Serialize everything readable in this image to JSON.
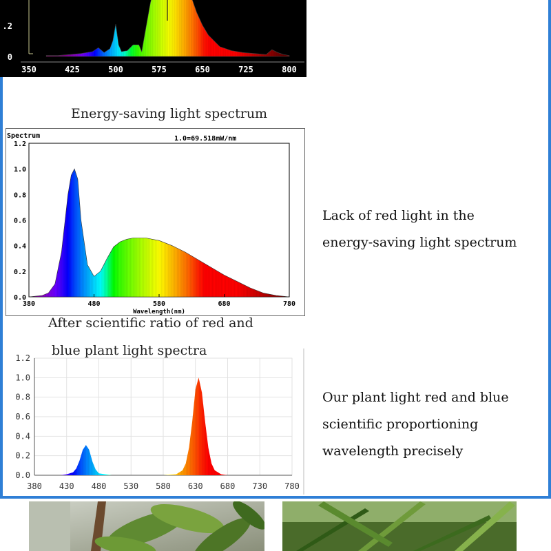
{
  "captions": {
    "energy_saving": "Energy-saving light spectrum",
    "scientific_line1": "After scientific ratio of red and",
    "scientific_line2": "blue plant light spectra"
  },
  "descriptions": {
    "energy_saving": [
      "Lack of red light in the",
      "energy-saving light spectrum"
    ],
    "plant_light": [
      "Our plant light red and blue",
      "scientific proportioning",
      "wavelength precisely"
    ]
  },
  "colors": {
    "border": "#2f7fd6",
    "red_peak": "#e01818",
    "blue_peak": "#1a2fd8"
  },
  "chart_data": [
    {
      "type": "area",
      "xlabel": "",
      "ylabel": "",
      "x_ticks": [
        "350",
        "425",
        "500",
        "575",
        "650",
        "725",
        "800"
      ],
      "y_ticks": [
        ".2",
        "0"
      ],
      "xlim": [
        350,
        800
      ],
      "background": "black",
      "series": [
        {
          "x": [
            380,
            400,
            420,
            440,
            460,
            470,
            480,
            490,
            495,
            500,
            505,
            510,
            520,
            530,
            540,
            545,
            550,
            560,
            570,
            580,
            590,
            600,
            610,
            620,
            630,
            640,
            650,
            660,
            670,
            680,
            700,
            720,
            740,
            760,
            770,
            780,
            790,
            800
          ],
          "values": [
            0.01,
            0.01,
            0.02,
            0.03,
            0.05,
            0.09,
            0.04,
            0.08,
            0.16,
            0.33,
            0.12,
            0.05,
            0.06,
            0.12,
            0.12,
            0.05,
            0.22,
            0.55,
            0.8,
            0.95,
            1.0,
            0.98,
            0.9,
            0.8,
            0.62,
            0.45,
            0.32,
            0.22,
            0.16,
            0.1,
            0.06,
            0.04,
            0.03,
            0.02,
            0.07,
            0.04,
            0.02,
            0.01
          ]
        }
      ]
    },
    {
      "type": "area",
      "title": "Spectrum",
      "annotation": "1.0=69.518mW/nm",
      "xlabel": "Wavelength(nm)",
      "ylabel": "",
      "x_ticks": [
        "380",
        "480",
        "580",
        "680",
        "780"
      ],
      "y_ticks": [
        "1.2",
        "1.0",
        "0.8",
        "0.6",
        "0.4",
        "0.2",
        "0.0"
      ],
      "xlim": [
        380,
        780
      ],
      "ylim": [
        0,
        1.2
      ],
      "series": [
        {
          "x": [
            380,
            400,
            410,
            420,
            430,
            440,
            445,
            450,
            455,
            460,
            470,
            480,
            490,
            500,
            510,
            520,
            530,
            540,
            550,
            560,
            570,
            580,
            600,
            620,
            640,
            660,
            680,
            700,
            720,
            740,
            760,
            780
          ],
          "values": [
            0.0,
            0.01,
            0.03,
            0.1,
            0.35,
            0.8,
            0.95,
            1.0,
            0.92,
            0.6,
            0.25,
            0.16,
            0.2,
            0.3,
            0.39,
            0.43,
            0.45,
            0.46,
            0.46,
            0.46,
            0.45,
            0.44,
            0.4,
            0.35,
            0.29,
            0.23,
            0.17,
            0.12,
            0.07,
            0.03,
            0.01,
            0.0
          ]
        }
      ]
    },
    {
      "type": "area",
      "xlabel": "",
      "ylabel": "",
      "x_ticks": [
        "380",
        "430",
        "480",
        "530",
        "580",
        "630",
        "680",
        "730",
        "780"
      ],
      "y_ticks": [
        "1.2",
        "1.0",
        "0.8",
        "0.6",
        "0.4",
        "0.2",
        "0.0"
      ],
      "xlim": [
        380,
        780
      ],
      "ylim": [
        0,
        1.2
      ],
      "grid": true,
      "series": [
        {
          "x": [
            380,
            420,
            430,
            440,
            445,
            450,
            455,
            460,
            465,
            470,
            475,
            480,
            490,
            500,
            580,
            600,
            610,
            615,
            620,
            625,
            630,
            635,
            640,
            645,
            650,
            655,
            660,
            670,
            680,
            780
          ],
          "values": [
            0.0,
            0.0,
            0.01,
            0.03,
            0.07,
            0.15,
            0.26,
            0.31,
            0.26,
            0.14,
            0.06,
            0.02,
            0.01,
            0.0,
            0.0,
            0.01,
            0.05,
            0.12,
            0.28,
            0.55,
            0.88,
            1.0,
            0.85,
            0.55,
            0.28,
            0.12,
            0.05,
            0.01,
            0.0,
            0.0
          ]
        }
      ]
    }
  ]
}
